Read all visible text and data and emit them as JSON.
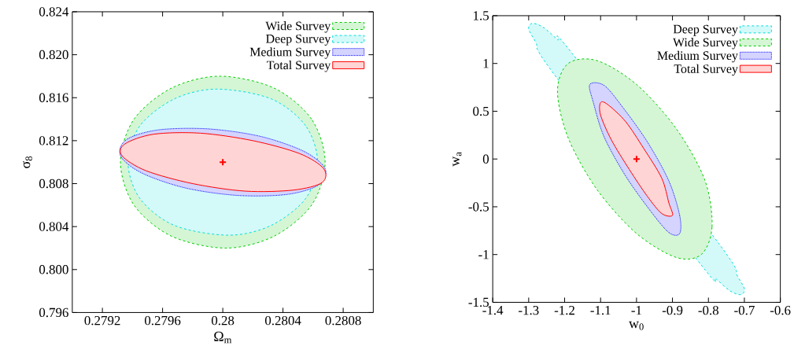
{
  "chart_data": [
    {
      "type": "area",
      "xlabel": "Ω$_{m}$",
      "ylabel": "σ$_{8}$",
      "legend": "top right",
      "grid": false,
      "xlim": [
        0.279,
        0.281
      ],
      "ylim": [
        0.796,
        0.824
      ],
      "xticks": [
        0.2792,
        0.2796,
        0.28,
        0.2804,
        0.2808
      ],
      "yticks": [
        {
          "value": 0.796,
          "label": "0.796"
        },
        {
          "value": 0.8,
          "label": "0.800"
        },
        {
          "value": 0.804,
          "label": "0.804"
        },
        {
          "value": 0.808,
          "label": "0.808"
        },
        {
          "value": 0.812,
          "label": "0.812"
        },
        {
          "value": 0.816,
          "label": "0.816"
        },
        {
          "value": 0.82,
          "label": "0.820"
        },
        {
          "value": 0.824,
          "label": "0.824"
        }
      ],
      "series": [
        {
          "name": "Wide Survey",
          "color": "#00cc00",
          "line_style": "dashed",
          "x": [
            0.28068,
            0.28059,
            0.28034,
            0.27998,
            0.27966,
            0.27941,
            0.27932,
            0.27941,
            0.27966,
            0.28002,
            0.28034,
            0.28059
          ],
          "values": [
            0.81,
            0.814,
            0.8169,
            0.818,
            0.8169,
            0.814,
            0.81,
            0.806,
            0.8031,
            0.802,
            0.8031,
            0.806
          ]
        },
        {
          "name": "Deep Survey",
          "color": "#00dddd",
          "line_style": "dashed",
          "x": [
            0.28063,
            0.28055,
            0.28032,
            0.27996,
            0.27968,
            0.27945,
            0.27937,
            0.27945,
            0.27968,
            0.28004,
            0.28032,
            0.28055
          ],
          "values": [
            0.81,
            0.8134,
            0.8159,
            0.8168,
            0.8159,
            0.8134,
            0.81,
            0.8066,
            0.8041,
            0.8032,
            0.8041,
            0.8066
          ]
        },
        {
          "name": "Medium Survey",
          "color": "#0000ff",
          "line_style": "dotted",
          "x": [
            0.28068,
            0.28054,
            0.28025,
            0.2799,
            0.27957,
            0.27936,
            0.27932,
            0.27946,
            0.27975,
            0.2801,
            0.28043,
            0.28064
          ],
          "values": [
            0.8094,
            0.811,
            0.8124,
            0.8131,
            0.813,
            0.8121,
            0.8106,
            0.809,
            0.8076,
            0.8069,
            0.807,
            0.8079
          ]
        },
        {
          "name": "Total Survey",
          "color": "#ff0000",
          "line_style": "solid",
          "x": [
            0.28067,
            0.28051,
            0.2802,
            0.27985,
            0.27954,
            0.27935,
            0.27933,
            0.27949,
            0.2798,
            0.28015,
            0.28047,
            0.28066
          ],
          "values": [
            0.8094,
            0.8108,
            0.812,
            0.8127,
            0.8126,
            0.8117,
            0.8106,
            0.8092,
            0.808,
            0.8073,
            0.8074,
            0.8081
          ]
        },
        {
          "type": "scatter",
          "marker": "cross",
          "color": "#ff0000",
          "x": [
            0.28
          ],
          "values": [
            0.81
          ]
        }
      ]
    },
    {
      "type": "area",
      "xlabel": "w$_{0}$",
      "ylabel": "w$_{a}$",
      "legend": "top right",
      "grid": false,
      "xlim": [
        -1.4,
        -0.6
      ],
      "ylim": [
        -1.5,
        1.5
      ],
      "xticks": [
        -1.4,
        -1.3,
        -1.2,
        -1.1,
        -1,
        -0.9,
        -0.8,
        -0.7,
        -0.6
      ],
      "yticks": [
        -1.5,
        -1,
        -0.5,
        0,
        0.5,
        1,
        1.5
      ],
      "series": [
        {
          "name": "Deep Survey",
          "color": "#00dddd",
          "line_style": "dashed",
          "x": [
            -0.71,
            -0.7,
            -0.72,
            -0.77,
            -1.18,
            -1.22,
            -1.26,
            -1.29,
            -1.3,
            -1.28,
            -1.23,
            -0.82,
            -0.78,
            -0.74
          ],
          "values": [
            -1.42,
            -1.36,
            -1.22,
            -0.89,
            1.11,
            1.25,
            1.38,
            1.42,
            1.36,
            1.22,
            0.89,
            -1.11,
            -1.25,
            -1.38
          ]
        },
        {
          "name": "Wide Survey",
          "color": "#00cc00",
          "line_style": "dashed",
          "x": [
            -0.82,
            -0.79,
            -0.81,
            -0.89,
            -1.0,
            -1.11,
            -1.19,
            -1.22,
            -1.19,
            -1.11,
            -1.0,
            -0.89
          ],
          "values": [
            -1.0,
            -0.71,
            -0.22,
            0.32,
            0.78,
            1.03,
            1.0,
            0.71,
            0.22,
            -0.32,
            -0.78,
            -1.03
          ]
        },
        {
          "name": "Medium Survey",
          "color": "#0000ff",
          "line_style": "dotted",
          "x": [
            -0.88,
            -0.88,
            -0.91,
            -0.97,
            -1.04,
            -1.09,
            -1.13,
            -1.12,
            -1.09,
            -1.03,
            -0.96,
            -0.91
          ],
          "values": [
            -0.78,
            -0.59,
            -0.23,
            0.18,
            0.55,
            0.77,
            0.78,
            0.59,
            0.23,
            -0.18,
            -0.55,
            -0.77
          ]
        },
        {
          "name": "Total Survey",
          "color": "#ff0000",
          "line_style": "solid",
          "x": [
            -0.9,
            -0.91,
            -0.93,
            -0.98,
            -1.03,
            -1.08,
            -1.1,
            -1.1,
            -1.07,
            -1.02,
            -0.97,
            -0.93
          ],
          "values": [
            -0.59,
            -0.46,
            -0.2,
            0.11,
            0.39,
            0.57,
            0.59,
            0.46,
            0.2,
            -0.11,
            -0.39,
            -0.57
          ]
        },
        {
          "type": "scatter",
          "marker": "cross",
          "color": "#ff0000",
          "x": [
            -1
          ],
          "values": [
            0
          ]
        }
      ]
    }
  ]
}
